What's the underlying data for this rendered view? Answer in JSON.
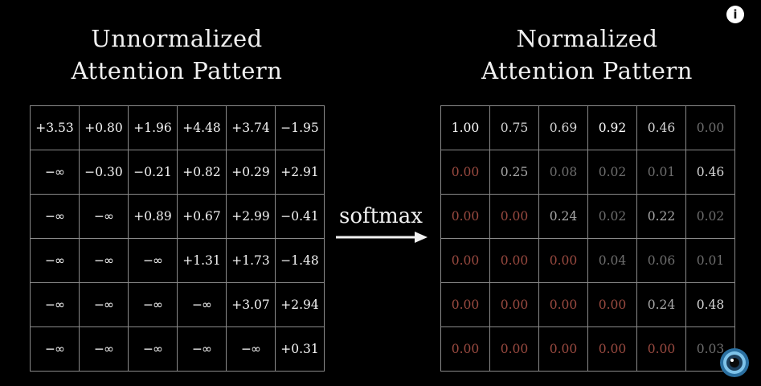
{
  "left_title": {
    "line1": "Unnormalized",
    "line2": "Attention Pattern"
  },
  "right_title": {
    "line1": "Normalized",
    "line2": "Attention Pattern"
  },
  "operation_label": "softmax",
  "info_icon": "i",
  "colors": {
    "background": "#000000",
    "neg_infinity": "#e2634f",
    "masked_zero": "#9a4a40",
    "grid_line": "#8a8a8a"
  },
  "icons": [
    "info-icon",
    "arrow-right-icon",
    "pi-creature-logo-icon"
  ],
  "unnormalized": [
    [
      "+3.53",
      "+0.80",
      "+1.96",
      "+4.48",
      "+3.74",
      "−1.95"
    ],
    [
      "−∞",
      "−0.30",
      "−0.21",
      "+0.82",
      "+0.29",
      "+2.91"
    ],
    [
      "−∞",
      "−∞",
      "+0.89",
      "+0.67",
      "+2.99",
      "−0.41"
    ],
    [
      "−∞",
      "−∞",
      "−∞",
      "+1.31",
      "+1.73",
      "−1.48"
    ],
    [
      "−∞",
      "−∞",
      "−∞",
      "−∞",
      "+3.07",
      "+2.94"
    ],
    [
      "−∞",
      "−∞",
      "−∞",
      "−∞",
      "−∞",
      "+0.31"
    ]
  ],
  "normalized": [
    [
      "1.00",
      "0.75",
      "0.69",
      "0.92",
      "0.46",
      "0.00"
    ],
    [
      "0.00",
      "0.25",
      "0.08",
      "0.02",
      "0.01",
      "0.46"
    ],
    [
      "0.00",
      "0.00",
      "0.24",
      "0.02",
      "0.22",
      "0.02"
    ],
    [
      "0.00",
      "0.00",
      "0.00",
      "0.04",
      "0.06",
      "0.01"
    ],
    [
      "0.00",
      "0.00",
      "0.00",
      "0.00",
      "0.24",
      "0.48"
    ],
    [
      "0.00",
      "0.00",
      "0.00",
      "0.00",
      "0.00",
      "0.03"
    ]
  ]
}
